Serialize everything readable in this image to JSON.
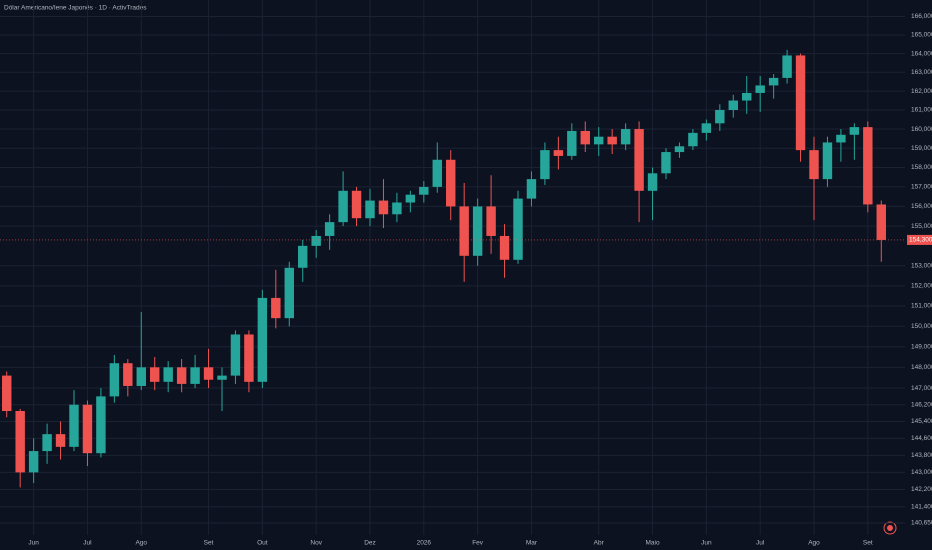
{
  "chart_data": {
    "type": "candlestick",
    "title": "Dólar Americano/Iene Japonês · 1D · ActivTrades",
    "categories": [
      null,
      null,
      "Jun",
      null,
      null,
      null,
      "Jul",
      null,
      null,
      null,
      "Ago",
      null,
      null,
      null,
      null,
      "Set",
      null,
      null,
      null,
      "Out",
      null,
      null,
      null,
      "Nov",
      null,
      null,
      null,
      "Dez",
      null,
      null,
      null,
      "2026",
      null,
      null,
      null,
      "Fev",
      null,
      null,
      null,
      "Mar",
      null,
      null,
      null,
      null,
      "Abr",
      null,
      null,
      null,
      "Maio",
      null,
      null,
      null,
      "Jun",
      null,
      null,
      null,
      "Jul",
      null,
      null,
      null,
      "Ago",
      null,
      null,
      null,
      "Set",
      null
    ],
    "open": [
      147.6,
      145.9,
      143.0,
      144.0,
      144.8,
      144.2,
      146.2,
      143.9,
      146.6,
      148.2,
      147.1,
      148.0,
      147.3,
      148.0,
      147.2,
      148.0,
      147.4,
      147.6,
      149.6,
      147.3,
      151.4,
      150.4,
      152.9,
      154.0,
      154.5,
      155.2,
      156.8,
      155.4,
      156.3,
      155.6,
      156.2,
      156.6,
      157.0,
      158.4,
      156.0,
      153.5,
      156.0,
      154.5,
      153.3,
      156.4,
      157.4,
      158.9,
      158.6,
      159.9,
      159.2,
      159.6,
      159.2,
      160.0,
      156.8,
      157.7,
      158.8,
      159.1,
      159.8,
      160.3,
      161.0,
      161.5,
      161.9,
      162.3,
      162.7,
      163.9,
      158.9,
      157.4,
      159.3,
      159.7,
      160.1,
      156.1
    ],
    "high": [
      147.8,
      146.0,
      144.6,
      145.3,
      145.4,
      146.9,
      146.4,
      147.0,
      148.6,
      148.4,
      150.7,
      148.5,
      148.3,
      148.4,
      148.6,
      148.9,
      148.0,
      149.8,
      149.8,
      151.8,
      152.8,
      153.2,
      154.3,
      154.8,
      155.6,
      157.8,
      157.0,
      156.9,
      157.4,
      156.7,
      156.8,
      157.3,
      159.3,
      158.9,
      157.2,
      156.4,
      157.6,
      155.1,
      156.8,
      157.8,
      159.3,
      159.6,
      160.3,
      160.4,
      160.1,
      160.0,
      160.3,
      160.4,
      158.0,
      159.0,
      159.3,
      160.0,
      160.5,
      161.3,
      161.8,
      162.8,
      162.8,
      162.9,
      164.2,
      164.0,
      159.6,
      159.6,
      160.0,
      160.3,
      160.4,
      156.3
    ],
    "low": [
      145.6,
      142.3,
      142.5,
      143.4,
      143.6,
      144.0,
      143.3,
      143.7,
      146.3,
      146.6,
      146.9,
      146.9,
      146.8,
      146.8,
      147.0,
      147.0,
      145.9,
      147.2,
      146.8,
      147.0,
      149.9,
      150.0,
      152.2,
      153.4,
      153.8,
      155.0,
      155.0,
      155.0,
      154.9,
      155.2,
      155.7,
      156.2,
      156.7,
      155.3,
      152.2,
      153.0,
      153.6,
      152.4,
      153.1,
      156.0,
      157.1,
      157.9,
      158.4,
      158.8,
      158.6,
      158.7,
      158.9,
      155.2,
      155.3,
      157.4,
      158.5,
      158.9,
      159.4,
      159.9,
      160.6,
      160.8,
      160.9,
      161.6,
      162.4,
      158.3,
      155.3,
      157.0,
      158.3,
      158.4,
      155.7,
      153.2
    ],
    "close": [
      145.9,
      143.0,
      144.0,
      144.8,
      144.2,
      146.2,
      143.9,
      146.6,
      148.2,
      147.1,
      148.0,
      147.3,
      148.0,
      147.2,
      148.0,
      147.4,
      147.6,
      149.6,
      147.3,
      151.4,
      150.4,
      152.9,
      154.0,
      154.5,
      155.2,
      156.8,
      155.4,
      156.3,
      155.6,
      156.2,
      156.6,
      157.0,
      158.4,
      156.0,
      153.5,
      156.0,
      154.5,
      153.3,
      156.4,
      157.4,
      158.9,
      158.6,
      159.9,
      159.2,
      159.6,
      159.2,
      160.0,
      156.8,
      157.7,
      158.8,
      159.1,
      159.8,
      160.3,
      161.0,
      161.5,
      161.9,
      162.3,
      162.7,
      163.9,
      158.9,
      157.4,
      159.3,
      159.7,
      160.1,
      156.1,
      154.3
    ],
    "up_color": "#26a69a",
    "down_color": "#ef5350",
    "ylim": [
      140.1,
      166.9
    ],
    "log_scale": true,
    "grid": true,
    "yticks": [
      {
        "value": 166,
        "label": "166,000"
      },
      {
        "value": 165,
        "label": "165,000"
      },
      {
        "value": 164,
        "label": "164,000"
      },
      {
        "value": 163,
        "label": "163,000"
      },
      {
        "value": 162,
        "label": "162,000"
      },
      {
        "value": 161,
        "label": "161,000"
      },
      {
        "value": 160,
        "label": "160,000"
      },
      {
        "value": 159,
        "label": "159,000"
      },
      {
        "value": 158,
        "label": "158,000"
      },
      {
        "value": 157,
        "label": "157,000"
      },
      {
        "value": 156,
        "label": "156,000"
      },
      {
        "value": 155,
        "label": "155,000"
      },
      {
        "value": 153,
        "label": "153,000"
      },
      {
        "value": 152,
        "label": "152,000"
      },
      {
        "value": 151,
        "label": "151,000"
      },
      {
        "value": 150,
        "label": "150,000"
      },
      {
        "value": 149,
        "label": "149,000"
      },
      {
        "value": 148,
        "label": "148,000"
      },
      {
        "value": 147,
        "label": "147,000"
      },
      {
        "value": 146.2,
        "label": "146,200"
      },
      {
        "value": 145.4,
        "label": "145,400"
      },
      {
        "value": 144.6,
        "label": "144,600"
      },
      {
        "value": 143.8,
        "label": "143,800"
      },
      {
        "value": 143,
        "label": "143,000"
      },
      {
        "value": 142.2,
        "label": "142,200"
      },
      {
        "value": 141.4,
        "label": "141,400"
      },
      {
        "value": 140.65,
        "label": "140,650"
      }
    ],
    "last_price_label": {
      "value": 154.3,
      "label": "154,300"
    }
  }
}
